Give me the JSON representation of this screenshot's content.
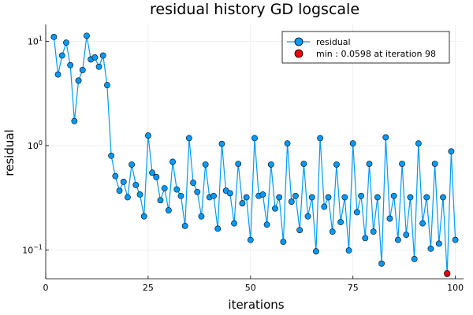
{
  "chart_data": {
    "type": "line",
    "title": "residual history GD logscale",
    "xlabel": "iterations",
    "ylabel": "residual",
    "xlim": [
      0,
      102
    ],
    "ylim": [
      0.053,
      14.5
    ],
    "yscale": "log",
    "grid": true,
    "legend_position": "top-right",
    "x_ticks": [
      {
        "value": 0,
        "label": "0"
      },
      {
        "value": 25,
        "label": "25"
      },
      {
        "value": 50,
        "label": "50"
      },
      {
        "value": 75,
        "label": "75"
      },
      {
        "value": 100,
        "label": "100"
      }
    ],
    "y_ticks": [
      {
        "value": 0.1,
        "base": "10",
        "exp": "−1"
      },
      {
        "value": 1,
        "base": "10",
        "exp": "0"
      },
      {
        "value": 10,
        "base": "10",
        "exp": "1"
      }
    ],
    "series": [
      {
        "name": "residual",
        "color": "#009AFA",
        "x": [
          2,
          3,
          4,
          5,
          6,
          7,
          8,
          9,
          10,
          11,
          12,
          13,
          14,
          15,
          16,
          17,
          18,
          19,
          20,
          21,
          22,
          23,
          24,
          25,
          26,
          27,
          28,
          29,
          30,
          31,
          32,
          33,
          34,
          35,
          36,
          37,
          38,
          39,
          40,
          41,
          42,
          43,
          44,
          45,
          46,
          47,
          48,
          49,
          50,
          51,
          52,
          53,
          54,
          55,
          56,
          57,
          58,
          59,
          60,
          61,
          62,
          63,
          64,
          65,
          66,
          67,
          68,
          69,
          70,
          71,
          72,
          73,
          74,
          75,
          76,
          77,
          78,
          79,
          80,
          81,
          82,
          83,
          84,
          85,
          86,
          87,
          88,
          89,
          90,
          91,
          92,
          93,
          94,
          95,
          96,
          97,
          98,
          99,
          100
        ],
        "y": [
          11.0,
          4.8,
          7.3,
          9.7,
          5.9,
          1.72,
          4.2,
          5.3,
          11.3,
          6.7,
          7.0,
          5.7,
          7.3,
          3.8,
          0.8,
          0.51,
          0.37,
          0.45,
          0.32,
          0.66,
          0.42,
          0.34,
          0.21,
          1.25,
          0.55,
          0.5,
          0.3,
          0.39,
          0.24,
          0.7,
          0.38,
          0.33,
          0.17,
          1.18,
          0.44,
          0.36,
          0.21,
          0.66,
          0.32,
          0.33,
          0.16,
          1.04,
          0.37,
          0.35,
          0.18,
          0.67,
          0.28,
          0.32,
          0.125,
          1.18,
          0.33,
          0.34,
          0.175,
          0.66,
          0.25,
          0.32,
          0.12,
          1.05,
          0.29,
          0.33,
          0.155,
          0.67,
          0.21,
          0.32,
          0.097,
          1.18,
          0.26,
          0.32,
          0.15,
          0.66,
          0.185,
          0.32,
          0.099,
          1.05,
          0.23,
          0.33,
          0.13,
          0.67,
          0.15,
          0.32,
          0.074,
          1.2,
          0.2,
          0.33,
          0.125,
          0.67,
          0.14,
          0.32,
          0.082,
          1.05,
          0.18,
          0.32,
          0.103,
          0.67,
          0.115,
          0.32,
          0.059,
          0.88,
          0.125
        ]
      },
      {
        "name": "min : 0.0598 at iteration 98",
        "color": "#E8000B",
        "x": [
          98
        ],
        "y": [
          0.0598
        ]
      }
    ]
  }
}
